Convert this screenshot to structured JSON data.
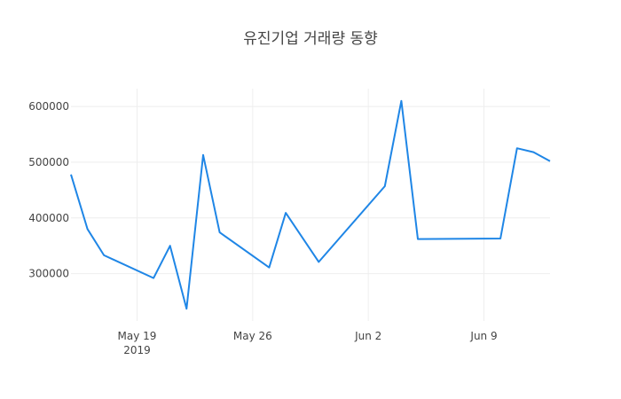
{
  "chart_data": {
    "type": "line",
    "title": "유진기업 거래량 동향",
    "xlabel": "",
    "ylabel": "",
    "x_ticks": [
      {
        "date": "2019-05-19",
        "label": "May 19",
        "sublabel": "2019"
      },
      {
        "date": "2019-05-26",
        "label": "May 26",
        "sublabel": ""
      },
      {
        "date": "2019-06-02",
        "label": "Jun 2",
        "sublabel": ""
      },
      {
        "date": "2019-06-09",
        "label": "Jun 9",
        "sublabel": ""
      }
    ],
    "y_ticks": [
      300000,
      400000,
      500000,
      600000
    ],
    "xlim": [
      "2019-05-15",
      "2019-06-13"
    ],
    "ylim": [
      215000,
      632000
    ],
    "grid": true,
    "series": [
      {
        "color": "#1f86e6",
        "x": [
          "2019-05-15",
          "2019-05-16",
          "2019-05-17",
          "2019-05-20",
          "2019-05-21",
          "2019-05-22",
          "2019-05-23",
          "2019-05-24",
          "2019-05-27",
          "2019-05-28",
          "2019-05-30",
          "2019-06-03",
          "2019-06-04",
          "2019-06-05",
          "2019-06-10",
          "2019-06-11",
          "2019-06-12",
          "2019-06-13"
        ],
        "values": [
          478000,
          380000,
          333000,
          292000,
          350000,
          237000,
          513000,
          374000,
          311000,
          409000,
          321000,
          457000,
          610000,
          362000,
          363000,
          525000,
          518000,
          502000
        ]
      }
    ]
  }
}
